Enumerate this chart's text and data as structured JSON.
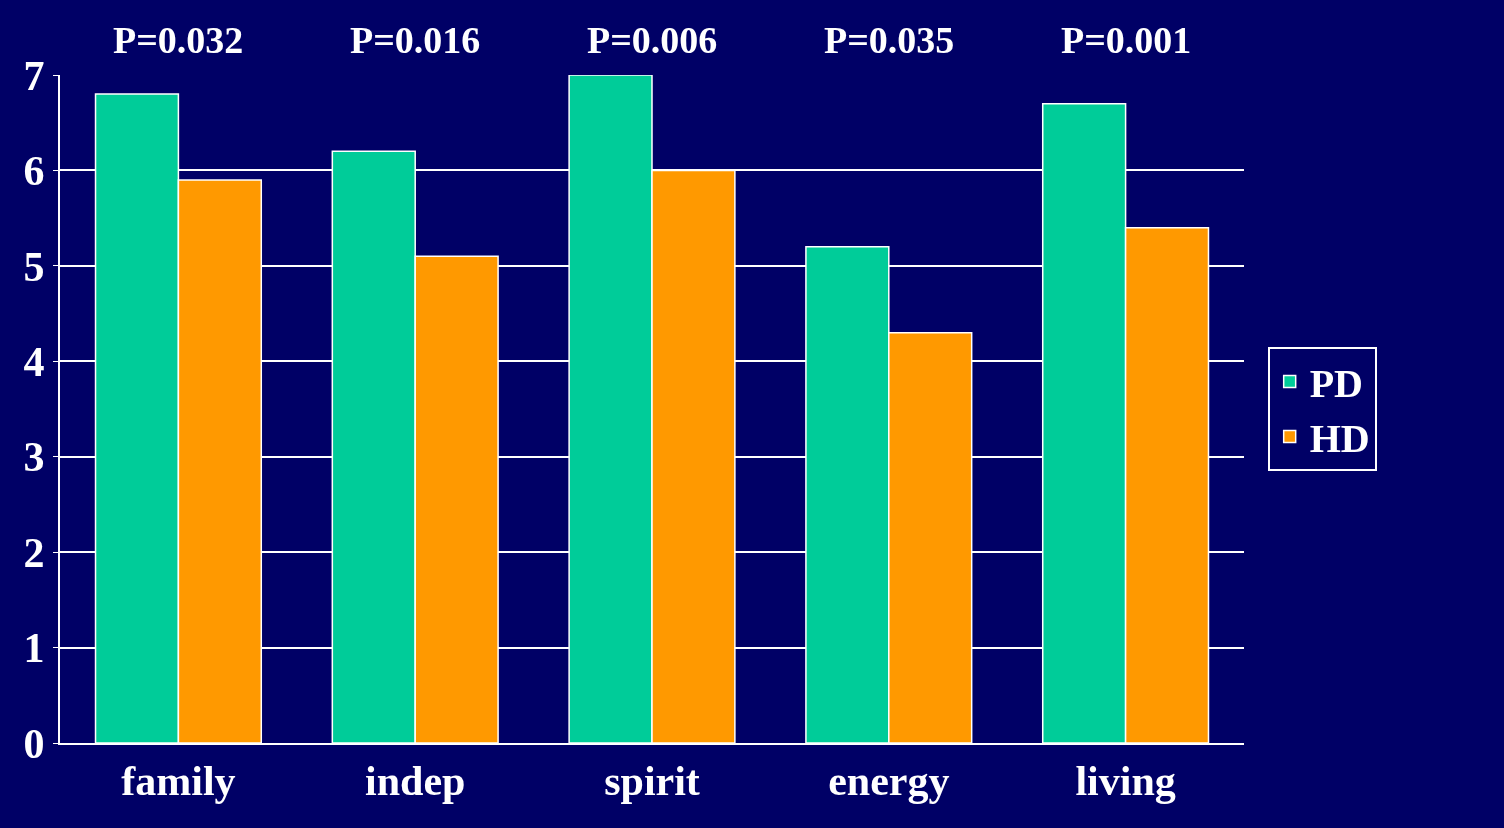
{
  "chart_data": {
    "type": "bar",
    "categories": [
      "family",
      "indep",
      "spirit",
      "energy",
      "living"
    ],
    "series": [
      {
        "name": "PD",
        "color": "#00cc99",
        "values": [
          6.8,
          6.2,
          7.0,
          5.2,
          6.7
        ]
      },
      {
        "name": "HD",
        "color": "#ff9900",
        "values": [
          5.9,
          5.1,
          6.0,
          4.3,
          5.4
        ]
      }
    ],
    "ylim": [
      0,
      7
    ],
    "yticks": [
      0,
      1,
      2,
      3,
      4,
      5,
      6,
      7
    ],
    "grid": "y",
    "legend": "right",
    "annotations": [
      "P=0.032",
      "P=0.016",
      "P=0.006",
      "P=0.035",
      "P=0.001"
    ]
  }
}
